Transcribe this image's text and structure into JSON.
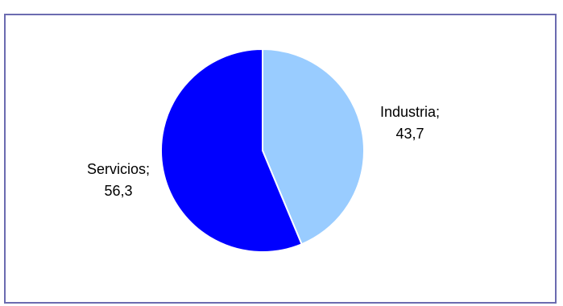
{
  "chart_data": {
    "type": "pie",
    "title": "",
    "slices": [
      {
        "name": "Industria",
        "value": 43.7,
        "name_label": "Industria;",
        "value_label": "43,7",
        "color": "#99ccff"
      },
      {
        "name": "Servicios",
        "value": 56.3,
        "name_label": "Servicios;",
        "value_label": "56,3",
        "color": "#0000ff"
      }
    ],
    "start_angle": "12 o'clock",
    "direction": "clockwise",
    "legend": "none",
    "slice_border_color": "#ffffff",
    "frame_border_color": "#6b6bb0"
  }
}
